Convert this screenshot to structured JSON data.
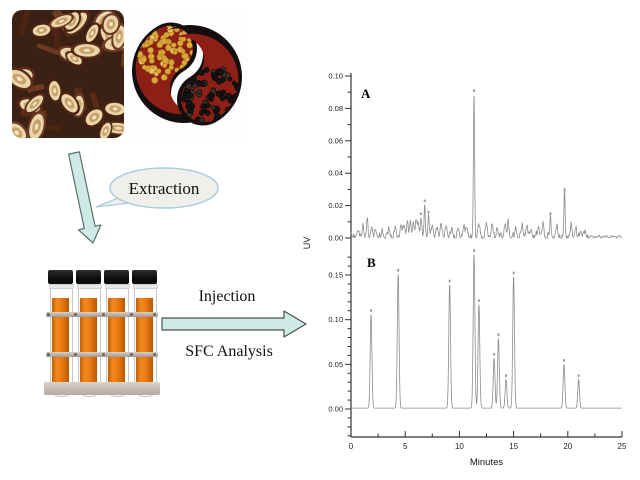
{
  "figure": {
    "photos": {
      "left": "dried-herbal-root-slices",
      "right": "soybeans-and-black-beans-in-yin-yang-bowls"
    },
    "extraction_label": "Extraction",
    "injection_label": "Injection",
    "sfc_label": "SFC Analysis",
    "colors": {
      "arrow_fill": "#cfe9e4",
      "arrow_stroke": "#5c6f6d",
      "bubble_fill": "#efefec",
      "bubble_stroke": "#a9cedd",
      "liquid_orange": "#e87812",
      "trace_gray": "#8c8c8c"
    }
  },
  "chart_data": {
    "type": "line",
    "title": "",
    "xlabel": "Minutes",
    "ylabel": "UV",
    "x_range": [
      0,
      25
    ],
    "x_major_tick": 5,
    "x_minor_tick": 2.5,
    "grid": false,
    "legend": "none",
    "line_color": "#8c8c8c",
    "panels": [
      {
        "label": "A",
        "ylim": [
          0,
          0.1
        ],
        "y_major_tick": 0.02,
        "y_minor_tick": 0.01,
        "y_tick_labels": [
          "0.00",
          "0.02",
          "0.04",
          "0.06",
          "0.08",
          "0.10"
        ],
        "noisy_baseline": true,
        "peaks": [
          [
            0.6,
            0.004
          ],
          [
            1.1,
            0.007
          ],
          [
            1.5,
            0.01
          ],
          [
            1.9,
            0.006
          ],
          [
            2.3,
            0.004
          ],
          [
            2.9,
            0.003
          ],
          [
            3.5,
            0.005
          ],
          [
            4.1,
            0.005
          ],
          [
            4.6,
            0.007
          ],
          [
            4.9,
            0.008
          ],
          [
            5.2,
            0.009
          ],
          [
            5.5,
            0.008
          ],
          [
            5.75,
            0.01
          ],
          [
            6.0,
            0.011
          ],
          [
            6.2,
            0.009
          ],
          [
            6.45,
            0.012
          ],
          [
            6.8,
            0.02
          ],
          [
            7.15,
            0.013
          ],
          [
            7.5,
            0.008
          ],
          [
            7.9,
            0.005
          ],
          [
            8.3,
            0.009
          ],
          [
            8.8,
            0.007
          ],
          [
            9.3,
            0.005
          ],
          [
            9.9,
            0.004
          ],
          [
            10.4,
            0.007
          ],
          [
            10.7,
            0.006
          ],
          [
            11.35,
            0.088
          ],
          [
            11.8,
            0.008
          ],
          [
            12.5,
            0.008
          ],
          [
            13.0,
            0.007
          ],
          [
            13.5,
            0.006
          ],
          [
            14.2,
            0.008
          ],
          [
            14.5,
            0.008
          ],
          [
            15.2,
            0.005
          ],
          [
            15.8,
            0.007
          ],
          [
            16.2,
            0.007
          ],
          [
            16.6,
            0.005
          ],
          [
            17.3,
            0.007
          ],
          [
            17.7,
            0.008
          ],
          [
            18.4,
            0.012
          ],
          [
            19.0,
            0.006
          ],
          [
            19.7,
            0.027
          ],
          [
            20.3,
            0.006
          ],
          [
            20.7,
            0.005
          ],
          [
            21.2,
            0.004
          ],
          [
            21.6,
            0.003
          ]
        ]
      },
      {
        "label": "B",
        "ylim": [
          0,
          0.175
        ],
        "y_major_tick": 0.05,
        "y_minor_tick": 0.01,
        "y_tick_labels": [
          "0.00",
          "0.05",
          "0.10",
          "0.15"
        ],
        "noisy_baseline": false,
        "peaks": [
          [
            1.85,
            0.105
          ],
          [
            4.35,
            0.15
          ],
          [
            9.1,
            0.138
          ],
          [
            11.35,
            0.172
          ],
          [
            11.8,
            0.116
          ],
          [
            13.2,
            0.056
          ],
          [
            13.6,
            0.078
          ],
          [
            14.3,
            0.032
          ],
          [
            15.0,
            0.147
          ],
          [
            19.65,
            0.049
          ],
          [
            21.0,
            0.032
          ]
        ]
      }
    ]
  }
}
